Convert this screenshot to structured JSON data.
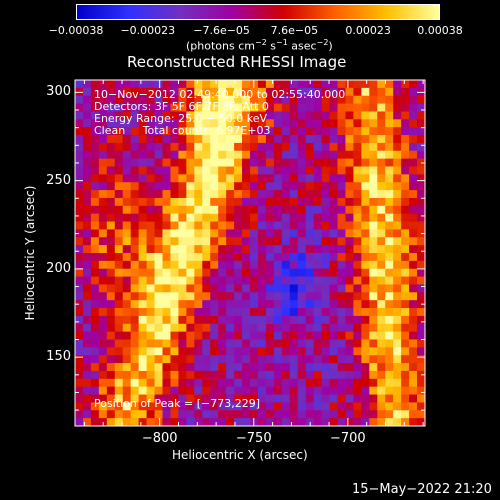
{
  "colorbar": {
    "tick_labels": [
      "−0.00038",
      "−0.00023",
      "−7.6e−05",
      "7.6e−05",
      "0.00023",
      "0.00038"
    ],
    "tick_values": [
      -0.00038,
      -0.00023,
      -7.6e-05,
      7.6e-05,
      0.00023,
      0.00038
    ],
    "range": [
      -0.00038,
      0.00038
    ],
    "unit_main": "(photons cm",
    "unit_sup1": "−2",
    "unit_mid": " s",
    "unit_sup2": "−1",
    "unit_end": " asec",
    "unit_sup3": "−2",
    "unit_close": ")",
    "colors": [
      "#0000c8",
      "#3030ff",
      "#7030c0",
      "#a000a0",
      "#d00000",
      "#ff6000",
      "#ffc000",
      "#ffffa0"
    ]
  },
  "chart_data": {
    "type": "heatmap",
    "title": "Reconstructed RHESSI Image",
    "xlabel": "Heliocentric X (arcsec)",
    "ylabel": "Heliocentric Y (arcsec)",
    "xlim": [
      -845,
      -659
    ],
    "ylim": [
      111,
      307
    ],
    "x_ticks": [
      -800,
      -750,
      -700
    ],
    "x_tick_labels": [
      "−800",
      "−750",
      "−700"
    ],
    "y_ticks": [
      150,
      200,
      250,
      300
    ],
    "y_tick_labels": [
      "150",
      "200",
      "250",
      "300"
    ],
    "peak": [
      -773,
      229
    ]
  },
  "annotations": {
    "time_range": "10−Nov−2012 02:49:40.000 to 02:55:40.000",
    "detectors": "Detectors: 3F 5F 6F 7F 8F, Att 0",
    "energy": "Energy Range: 25.0 − 50.0 keV",
    "method": "Clean     Total counts: 6.97E+03",
    "peak": "Position of Peak = [−773,229]"
  },
  "timestamp": "15−May−2022 21:20"
}
